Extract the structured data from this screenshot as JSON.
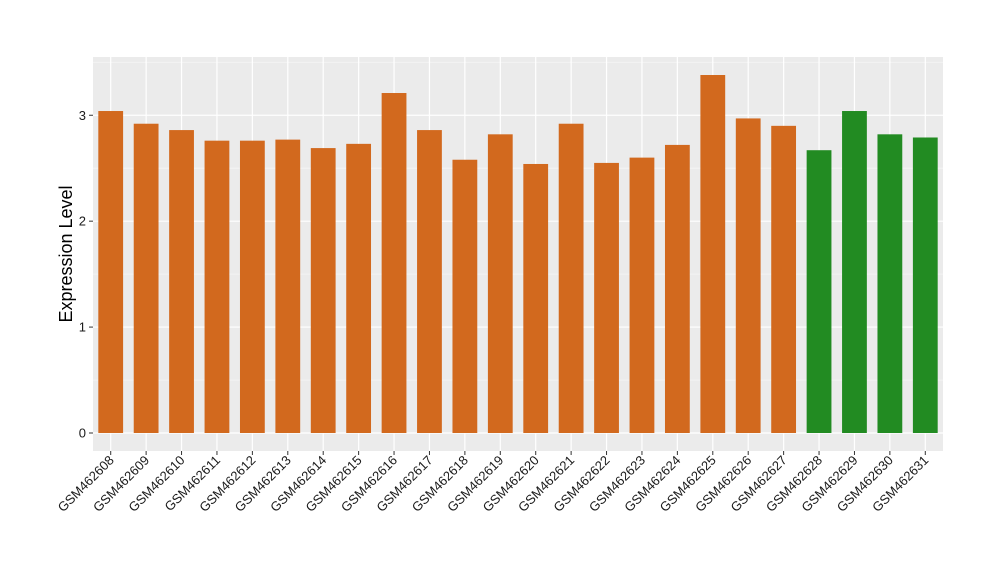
{
  "chart_data": {
    "type": "bar",
    "title": "",
    "xlabel": "",
    "ylabel": "Expression Level",
    "ylim": [
      -0.17,
      3.55
    ],
    "yticks": [
      0,
      1,
      2,
      3
    ],
    "grid": true,
    "legend": "none",
    "categories": [
      "GSM462608",
      "GSM462609",
      "GSM462610",
      "GSM462611",
      "GSM462612",
      "GSM462613",
      "GSM462614",
      "GSM462615",
      "GSM462616",
      "GSM462617",
      "GSM462618",
      "GSM462619",
      "GSM462620",
      "GSM462621",
      "GSM462622",
      "GSM462623",
      "GSM462624",
      "GSM462625",
      "GSM462626",
      "GSM462627",
      "GSM462628",
      "GSM462629",
      "GSM462630",
      "GSM462631"
    ],
    "values": [
      3.04,
      2.92,
      2.86,
      2.76,
      2.76,
      2.77,
      2.69,
      2.73,
      3.21,
      2.86,
      2.58,
      2.82,
      2.54,
      2.92,
      2.55,
      2.6,
      2.72,
      3.38,
      2.97,
      2.9,
      2.67,
      3.04,
      2.82,
      2.79
    ],
    "groups": [
      "a",
      "a",
      "a",
      "a",
      "a",
      "a",
      "a",
      "a",
      "a",
      "a",
      "a",
      "a",
      "a",
      "a",
      "a",
      "a",
      "a",
      "a",
      "a",
      "a",
      "b",
      "b",
      "b",
      "b"
    ],
    "colors": {
      "a": "#d2691e",
      "b": "#228b22",
      "panel": "#ebebeb",
      "grid_major": "#ffffff",
      "grid_minor": "#f5f5f5",
      "tick": "#333333"
    }
  }
}
